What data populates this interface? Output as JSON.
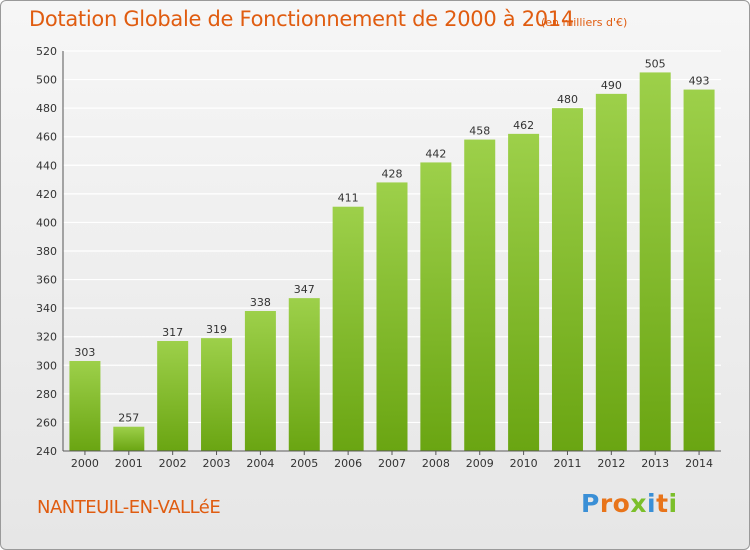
{
  "chart_data": {
    "type": "bar",
    "title": "Dotation Globale de Fonctionnement de 2000 à 2014",
    "subtitle": "(en milliers d'€)",
    "xlabel": "",
    "ylabel": "",
    "categories": [
      "2000",
      "2001",
      "2002",
      "2003",
      "2004",
      "2005",
      "2006",
      "2007",
      "2008",
      "2009",
      "2010",
      "2011",
      "2012",
      "2013",
      "2014"
    ],
    "values": [
      303,
      257,
      317,
      319,
      338,
      347,
      411,
      428,
      442,
      458,
      462,
      480,
      490,
      505,
      493
    ],
    "ylim": [
      240,
      520
    ],
    "yticks": [
      240,
      260,
      280,
      300,
      320,
      340,
      360,
      380,
      400,
      420,
      440,
      460,
      480,
      500,
      520
    ],
    "grid": true,
    "legend": "none",
    "colors": {
      "bar_top": "#9dd04a",
      "bar_bottom": "#6aa512",
      "grid": "#ffffff",
      "axis": "#555555"
    }
  },
  "commune": "NANTEUIL-EN-VALLéE",
  "logo": {
    "letters": [
      "P",
      "r",
      "o",
      "x",
      "i",
      "t",
      "i"
    ],
    "colors": [
      "#3a8fd6",
      "#e8741a",
      "#e8741a",
      "#7bbf2a",
      "#3a8fd6",
      "#e8741a",
      "#7bbf2a"
    ]
  },
  "palette": {
    "title": "#e05c10",
    "background": "#eeeeee"
  }
}
